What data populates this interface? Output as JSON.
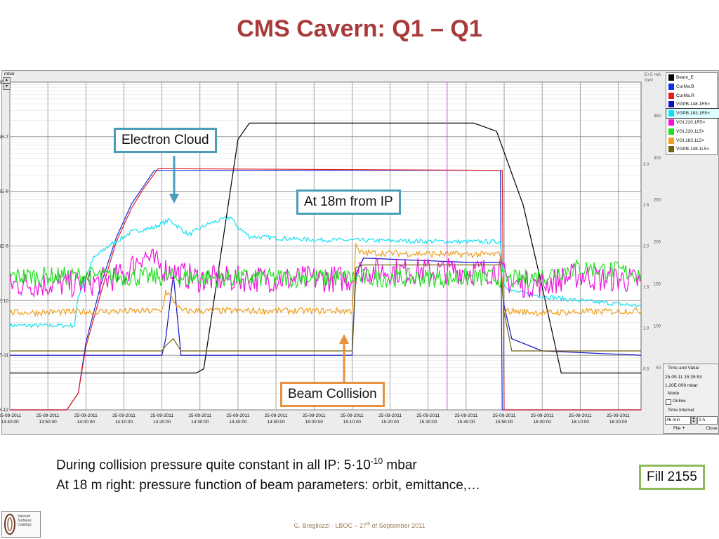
{
  "title": "CMS Cavern: Q1 – Q1",
  "callouts": {
    "electron_cloud": "Electron Cloud",
    "at_18m": "At 18m from IP",
    "beam_collision": "Beam Collision",
    "fill": "Fill 2155"
  },
  "body": {
    "line1_prefix": "During collision pressure quite constant in all IP: 5·10",
    "line1_sup": "-10",
    "line1_suffix": " mbar",
    "line2": "At 18 m right: pressure function of beam parameters: orbit, emittance,…"
  },
  "footer": {
    "prefix": "G. Bregliozzi - LBOC – 27",
    "sup": "th",
    "suffix": " of September 2011"
  },
  "logo": {
    "text_line1": "Vacuum",
    "text_line2": "Surfaces",
    "text_line3": "Coatings"
  },
  "side_panel": {
    "time_value_label": "Time and Value",
    "time_value": "25-09-11 15:35:53",
    "pressure_value": "1.20E-009 mbar",
    "mode_label": "Mode",
    "online_label": "Online",
    "interval_label": "Time Interval",
    "interval_value": "46 min",
    "interval_span": "2 h",
    "file_button": "File",
    "close_button": "Close"
  },
  "chart_data": {
    "type": "line",
    "ylabel": "mbar",
    "yscale": "log",
    "ylim": [
      1e-12,
      1e-06
    ],
    "ytick_labels": [
      "1E-6",
      "1E-7",
      "1E-8",
      "1E-9",
      "1E-10",
      "1E-11",
      "1E-12"
    ],
    "xlim": [
      "13:40",
      "16:26"
    ],
    "xtick_labels": [
      [
        "25-09-2011",
        "13:40:00"
      ],
      [
        "25-09-2011",
        "13:50:00"
      ],
      [
        "25-09-2011",
        "14:00:00"
      ],
      [
        "25-09-2011",
        "14:10:00"
      ],
      [
        "25-09-2011",
        "14:20:00"
      ],
      [
        "25-09-2011",
        "14:30:00"
      ],
      [
        "25-09-2011",
        "14:40:00"
      ],
      [
        "25-09-2011",
        "14:50:00"
      ],
      [
        "25-09-2011",
        "15:00:00"
      ],
      [
        "25-09-2011",
        "15:10:00"
      ],
      [
        "25-09-2011",
        "15:20:00"
      ],
      [
        "25-09-2011",
        "15:30:00"
      ],
      [
        "25-09-2011",
        "15:40:00"
      ],
      [
        "25-09-2011",
        "15:50:00"
      ],
      [
        "25-09-2011",
        "16:00:00"
      ],
      [
        "25-09-2011",
        "16:10:00"
      ],
      [
        "25-09-2011",
        "16:20:00"
      ]
    ],
    "right_axis_units": [
      "E+3",
      "mA",
      "GeV"
    ],
    "right_axis_ma_ticks": [
      "350",
      "300",
      "250",
      "200",
      "150",
      "100",
      "50"
    ],
    "right_axis_gev_ticks": [
      "3.0",
      "2.5",
      "2.0",
      "1.5",
      "1.0",
      "0.5"
    ],
    "right_axis_ma_range": [
      0,
      390
    ],
    "right_axis_gev_range": [
      0,
      4000
    ],
    "cursor_time": "15:35",
    "grid": true,
    "legend_placement": "right",
    "legend": [
      {
        "name": "Beam_E",
        "color": "#000000"
      },
      {
        "name": "CurMa.B",
        "color": "#1030e0"
      },
      {
        "name": "CurMa.R",
        "color": "#e02020"
      },
      {
        "name": "VGPB.148.1R5×",
        "color": "#1010c0"
      },
      {
        "name": "VGPB.183.1R5×",
        "color": "#10e0f0"
      },
      {
        "name": "VGI.220.1R5×",
        "color": "#f010e0"
      },
      {
        "name": "VGI.220.1L5×",
        "color": "#20e020"
      },
      {
        "name": "VGI.183.1L5×",
        "color": "#f0a020"
      },
      {
        "name": "VGPB.148.1L5×",
        "color": "#706010"
      }
    ],
    "series": [
      {
        "name": "Beam_E",
        "axis": "GeV",
        "color": "#000000",
        "x": [
          "13:40",
          "14:29",
          "14:31",
          "14:40",
          "14:43",
          "15:40",
          "15:42",
          "15:45",
          "15:48",
          "15:55",
          "16:00",
          "16:05",
          "16:26"
        ],
        "y": [
          450,
          450,
          500,
          3300,
          3500,
          3500,
          3500,
          3450,
          3400,
          2500,
          1500,
          450,
          450
        ]
      },
      {
        "name": "CurMa.B",
        "axis": "mA",
        "color": "#1030e0",
        "x": [
          "13:40",
          "13:55",
          "13:58",
          "14:00",
          "14:04",
          "14:08",
          "14:12",
          "14:15",
          "14:18",
          "15:49",
          "15:49.5",
          "16:26"
        ],
        "y": [
          0,
          0,
          20,
          80,
          150,
          205,
          245,
          265,
          285,
          285,
          0,
          0
        ]
      },
      {
        "name": "CurMa.R",
        "axis": "mA",
        "color": "#e02020",
        "x": [
          "13:40",
          "13:55",
          "13:58",
          "14:00",
          "14:04",
          "14:08",
          "14:12",
          "14:15",
          "14:19",
          "15:49.5",
          "15:50",
          "16:26"
        ],
        "y": [
          0,
          0,
          20,
          75,
          140,
          200,
          240,
          262,
          287,
          285,
          0,
          0
        ]
      },
      {
        "name": "VGPB.148.1R5×",
        "axis": "mbar",
        "color": "#1010c0",
        "x": [
          "13:40",
          "14:20",
          "14:21",
          "14:23",
          "14:25",
          "15:10",
          "15:11",
          "15:13",
          "15:41",
          "15:49",
          "15:50",
          "15:52",
          "16:00",
          "16:26"
        ],
        "y": [
          1e-11,
          1e-11,
          2e-11,
          3e-10,
          1e-11,
          1e-11,
          3e-10,
          6e-10,
          5e-10,
          5e-10,
          8e-11,
          2e-11,
          1.2e-11,
          1e-11
        ]
      },
      {
        "name": "VGPB.183.1R5×",
        "axis": "mbar",
        "color": "#10e0f0",
        "x": [
          "13:40",
          "13:57",
          "13:58",
          "14:02",
          "14:06",
          "14:12",
          "14:18",
          "14:22",
          "14:27",
          "14:32",
          "14:38",
          "14:40",
          "14:43",
          "14:50",
          "15:00",
          "15:20",
          "15:40",
          "15:49",
          "15:50",
          "15:52",
          "16:00",
          "16:10",
          "16:26"
        ],
        "y": [
          3.5e-11,
          3.5e-11,
          1.2e-10,
          6e-10,
          1e-09,
          1.8e-09,
          2.2e-09,
          3e-09,
          1.6e-09,
          2.5e-09,
          3.4e-09,
          2.2e-09,
          1.5e-09,
          1.4e-09,
          1.3e-09,
          1.25e-09,
          1.2e-09,
          1.2e-09,
          2e-10,
          1.5e-10,
          1.2e-10,
          1e-10,
          8e-11
        ]
      },
      {
        "name": "VGI.220.1R5×",
        "axis": "mbar",
        "color": "#f010e0",
        "x": [
          "13:40",
          "13:58",
          "14:04",
          "14:10",
          "14:15",
          "14:20",
          "14:25",
          "14:30",
          "15:10",
          "15:11",
          "15:20",
          "15:40",
          "15:49",
          "15:52",
          "16:00",
          "16:05",
          "16:10",
          "16:15",
          "16:20",
          "16:26"
        ],
        "y": [
          2e-10,
          2e-10,
          2.2e-10,
          3e-10,
          7e-10,
          4e-10,
          3e-10,
          2.5e-10,
          2.5e-10,
          3.5e-10,
          3.5e-10,
          3.5e-10,
          3.5e-10,
          2e-10,
          2e-10,
          2.5e-10,
          3e-10,
          2.5e-10,
          2.5e-10,
          2.2e-10
        ]
      },
      {
        "name": "VGI.220.1L5×",
        "axis": "mbar",
        "color": "#20e020",
        "x": [
          "13:40",
          "14:00",
          "14:20",
          "14:40",
          "15:00",
          "15:11",
          "15:40",
          "15:49",
          "15:52",
          "16:00",
          "16:05",
          "16:10",
          "16:20",
          "16:26"
        ],
        "y": [
          2.8e-10,
          2.8e-10,
          2.7e-10,
          2.6e-10,
          2.6e-10,
          2.6e-10,
          2.6e-10,
          2.6e-10,
          2.4e-10,
          2.8e-10,
          3.5e-10,
          4e-10,
          3.5e-10,
          3e-10
        ]
      },
      {
        "name": "VGI.183.1L5×",
        "axis": "mbar",
        "color": "#f0a020",
        "x": [
          "13:40",
          "14:20",
          "14:21",
          "14:23",
          "14:25",
          "15:10",
          "15:11",
          "15:12",
          "15:40",
          "15:49",
          "15:50",
          "16:00",
          "16:26"
        ],
        "y": [
          6e-11,
          6.5e-11,
          1.5e-10,
          1e-10,
          6.5e-11,
          6.5e-11,
          1e-09,
          7.5e-10,
          7e-10,
          7e-10,
          6.5e-11,
          6e-11,
          6.5e-11
        ]
      },
      {
        "name": "VGPB.148.1L5×",
        "axis": "mbar",
        "color": "#706010",
        "x": [
          "13:40",
          "14:20",
          "14:21",
          "14:23",
          "14:25",
          "15:10",
          "15:11",
          "15:13",
          "15:40",
          "15:49",
          "15:50",
          "15:52",
          "16:26"
        ],
        "y": [
          1.2e-11,
          1.2e-11,
          1.5e-11,
          2e-11,
          1.2e-11,
          1.2e-11,
          4e-10,
          4.5e-10,
          4.5e-10,
          4.5e-10,
          6e-11,
          1.2e-11,
          1.2e-11
        ]
      }
    ]
  }
}
